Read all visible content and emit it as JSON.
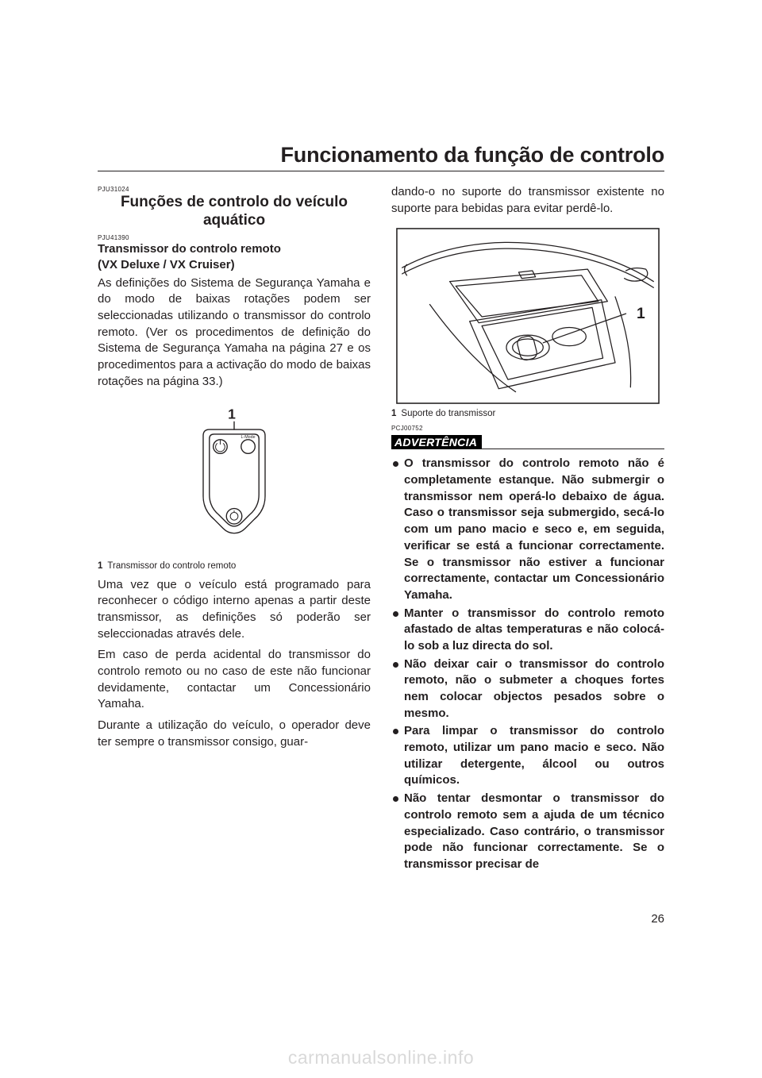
{
  "chapter_title": "Funcionamento da função de controlo",
  "page_number": "26",
  "watermark": "carmanualsonline.info",
  "left": {
    "ref1": "PJU31024",
    "section_head_l1": "Funções de controlo do veículo",
    "section_head_l2": "aquático",
    "ref2": "PJU41390",
    "subhead_l1": "Transmissor do controlo remoto",
    "subhead_l2": "(VX Deluxe / VX Cruiser)",
    "para1": "As definições do Sistema de Segurança Yamaha e do modo de baixas rotações po­dem ser seleccionadas utilizando o transmis­sor do controlo remoto. (Ver os procedimentos de definição do Sistema de Segurança Yamaha na página 27 e os proce­dimentos para a activação do modo de baixas rotações na página 33.)",
    "fig1": {
      "callout_no": "1",
      "label_no": "1",
      "label_txt": "Transmissor do controlo remoto",
      "btn_label": "L-Mode"
    },
    "para2": "Uma vez que o veículo está programado para reconhecer o código interno apenas a partir deste transmissor, as definições só poderão ser seleccionadas através dele.",
    "para3": "Em caso de perda acidental do transmissor do controlo remoto ou no caso de este não funcionar devidamente, contactar um Con­cessionário Yamaha.",
    "para4": "Durante a utilização do veículo, o operador deve ter sempre o transmissor consigo, guar-"
  },
  "right": {
    "para_top": "dando-o no suporte do transmissor existente no suporte para bebidas para evitar perdê-lo.",
    "fig2": {
      "callout_no": "1",
      "label_no": "1",
      "label_txt": "Suporte do transmissor"
    },
    "ref3": "PCJ00752",
    "warn_label": "ADVERTÊNCIA",
    "bullets": [
      "O transmissor do controlo remoto não é completamente estanque. Não submer­gir o transmissor nem operá-lo debaixo de água. Caso o transmissor seja sub­mergido, secá-lo com um pano macio e seco e, em seguida, verificar se está a funcionar correctamente. Se o transmis­sor não estiver a funcionar correcta­mente, contactar um Concessionário Yamaha.",
      "Manter o transmissor do controlo remo­to afastado de altas temperaturas e não colocá-lo sob a luz directa do sol.",
      "Não deixar cair o transmissor do contro­lo remoto, não o submeter a choques fortes nem colocar objectos pesados sobre o mesmo.",
      "Para limpar o transmissor do controlo remoto, utilizar um pano macio e seco. Não utilizar detergente, álcool ou outros químicos.",
      "Não tentar desmontar o transmissor do controlo remoto sem a ajuda de um téc­nico especializado. Caso contrário, o transmissor pode não funcionar correc­tamente. Se o transmissor precisar de"
    ]
  }
}
